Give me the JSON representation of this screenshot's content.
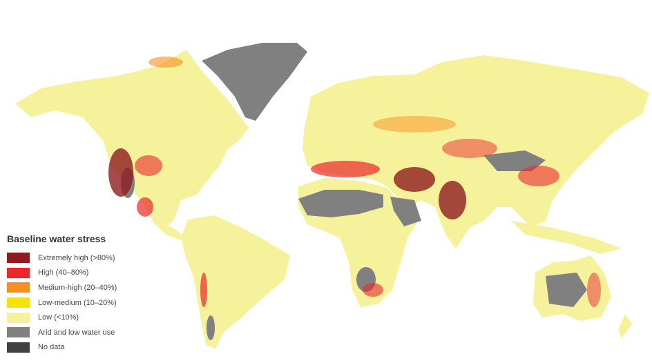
{
  "legend": {
    "title": "Baseline water stress",
    "items": [
      {
        "label": "Extremely high (>80%)",
        "color": "#8e1b1f"
      },
      {
        "label": "High (40–80%)",
        "color": "#e8282b"
      },
      {
        "label": "Medium-high (20–40%)",
        "color": "#f5901f"
      },
      {
        "label": "Low-medium (10–20%)",
        "color": "#f5e400"
      },
      {
        "label": "Low (<10%)",
        "color": "#f6f29c"
      },
      {
        "label": "Arid and low water use",
        "color": "#808080"
      },
      {
        "label": "No data",
        "color": "#404040"
      }
    ]
  }
}
